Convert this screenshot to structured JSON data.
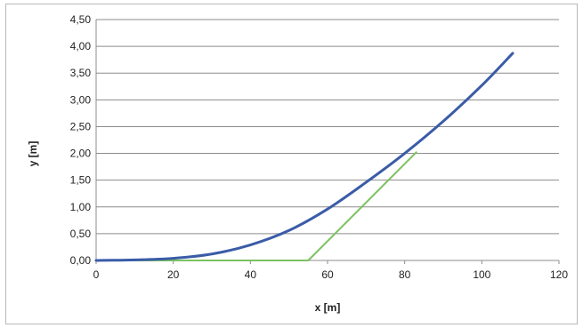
{
  "chart_data": {
    "type": "line",
    "title": "",
    "xlabel": "x [m]",
    "ylabel": "y [m]",
    "xlim": [
      0,
      120
    ],
    "ylim": [
      0,
      4.5
    ],
    "xticks": [
      "0",
      "20",
      "40",
      "60",
      "80",
      "100",
      "120"
    ],
    "yticks": [
      "0,00",
      "0,50",
      "1,00",
      "1,50",
      "2,00",
      "2,50",
      "3,00",
      "3,50",
      "4,00",
      "4,50"
    ],
    "grid": true,
    "legend": "none",
    "series": [
      {
        "color": "#3a5ca8",
        "x": [
          0,
          10,
          20,
          30,
          40,
          50,
          60,
          70,
          80,
          90,
          100,
          108
        ],
        "y": [
          0,
          0.01,
          0.04,
          0.12,
          0.29,
          0.56,
          0.96,
          1.46,
          2.0,
          2.6,
          3.27,
          3.87
        ]
      },
      {
        "color": "#7cc160",
        "x": [
          0,
          55,
          83
        ],
        "y": [
          0,
          0,
          2.02
        ]
      }
    ]
  }
}
